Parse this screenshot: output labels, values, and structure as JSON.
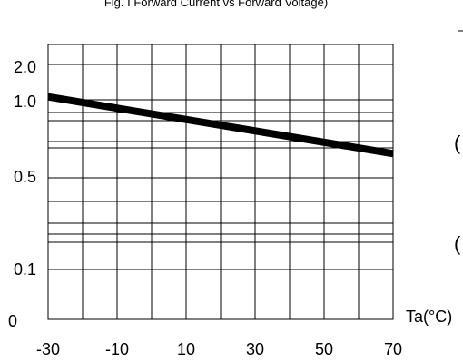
{
  "chart_data": {
    "type": "line",
    "title": "Fig. I Forward Current vs Forward Voltage)",
    "xlabel": "Ta(°C)",
    "ylabel": "",
    "x_ticks": [
      "-30",
      "-10",
      "10",
      "30",
      "50",
      "70"
    ],
    "x_tick_values": [
      -30,
      -10,
      10,
      30,
      50,
      70
    ],
    "y_ticks": [
      "2.0",
      "1.0",
      "0.5",
      "0.1",
      "0"
    ],
    "xlim": [
      -30,
      70
    ],
    "series": [
      {
        "x": [
          -30,
          70
        ],
        "y": [
          1.06,
          0.62
        ],
        "color": "#000000"
      }
    ],
    "grid": true,
    "legend": "none"
  },
  "edge_fragments": [
    "(",
    "("
  ]
}
